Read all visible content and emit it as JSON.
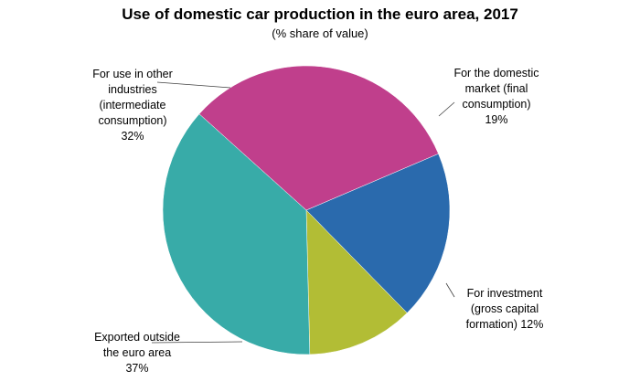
{
  "chart_data": {
    "type": "pie",
    "title": "Use of domestic car production in the euro area, 2017",
    "subtitle": "(% share of value)",
    "slices": [
      {
        "id": "domestic",
        "label_lines": [
          "For the domestic",
          "market (final",
          "consumption)",
          "19%"
        ],
        "value": 19,
        "color": "#2a6aad"
      },
      {
        "id": "investment",
        "label_lines": [
          "For investment",
          "(gross capital",
          "formation)  12%"
        ],
        "value": 12,
        "color": "#b2bd35"
      },
      {
        "id": "exported",
        "label_lines": [
          "Exported outside",
          "the euro area",
          "37%"
        ],
        "value": 37,
        "color": "#38aba8"
      },
      {
        "id": "other-industries",
        "label_lines": [
          "For use in other",
          "industries",
          "(intermediate",
          "consumption)",
          "32%"
        ],
        "value": 32,
        "color": "#c03f8c"
      }
    ]
  }
}
